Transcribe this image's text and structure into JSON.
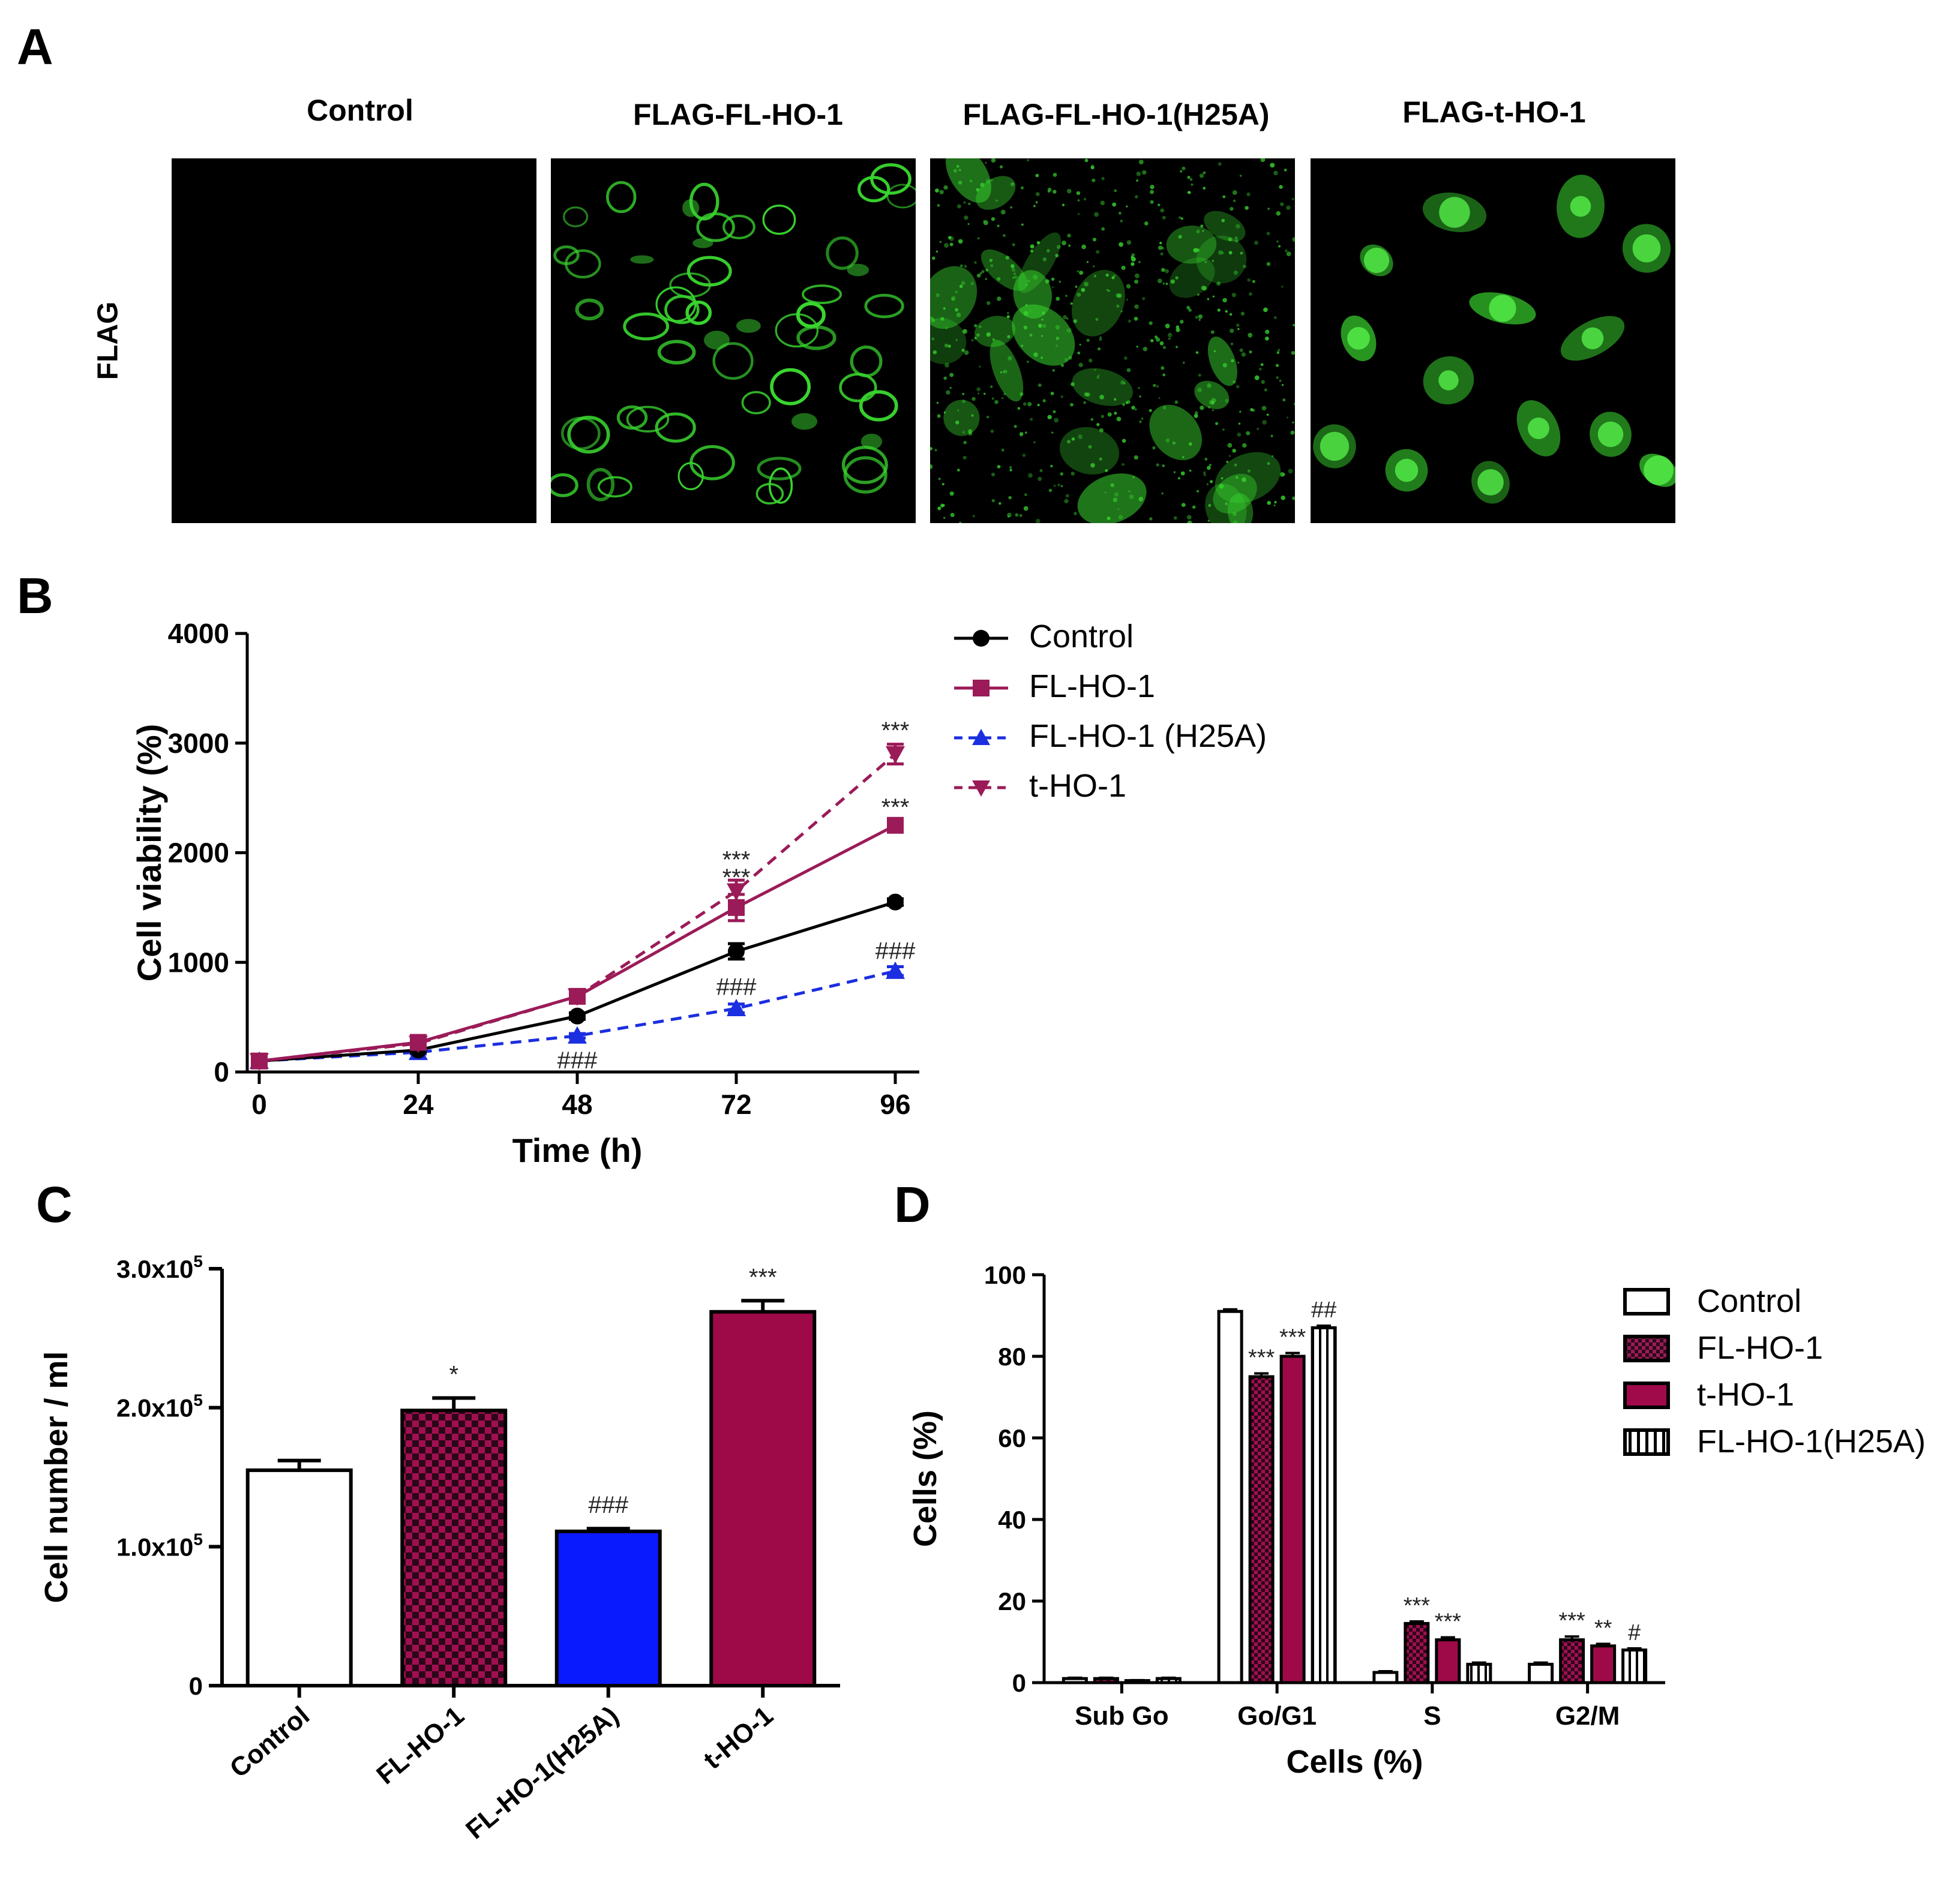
{
  "panels": {
    "a": "A",
    "b": "B",
    "c": "C",
    "d": "D"
  },
  "panel_a": {
    "row_label": "FLAG",
    "images": [
      {
        "title": "Control",
        "icon": "micrograph-blank"
      },
      {
        "title": "FLAG-FL-HO-1",
        "icon": "micrograph-membrane-green"
      },
      {
        "title": "FLAG-FL-HO-1(H25A)",
        "icon": "micrograph-reticular-green"
      },
      {
        "title": "FLAG-t-HO-1",
        "icon": "micrograph-diffuse-green"
      }
    ],
    "fluorescence_color": "#39d62f"
  },
  "chart_data": [
    {
      "panel": "B",
      "type": "line",
      "xlabel": "Time (h)",
      "ylabel": "Cell viability (%)",
      "x": [
        0,
        24,
        48,
        72,
        96
      ],
      "xticks": [
        "0",
        "24",
        "48",
        "72",
        "96"
      ],
      "ylim": [
        0,
        4000
      ],
      "yticks": [
        "0",
        "1000",
        "2000",
        "3000",
        "4000"
      ],
      "legend_position": "right",
      "series": [
        {
          "name": "Control",
          "values": [
            100,
            200,
            510,
            1100,
            1550
          ],
          "errors": [
            15,
            20,
            30,
            70,
            30
          ],
          "color": "#000000",
          "marker": "circle",
          "dashed": false
        },
        {
          "name": "FL-HO-1",
          "values": [
            100,
            270,
            690,
            1500,
            2250
          ],
          "errors": [
            15,
            20,
            30,
            120,
            40
          ],
          "color": "#9b1b58",
          "marker": "square",
          "dashed": false
        },
        {
          "name": "FL-HO-1 (H25A)",
          "values": [
            100,
            180,
            330,
            580,
            920
          ],
          "errors": [
            10,
            15,
            20,
            40,
            40
          ],
          "color": "#1b2ee0",
          "marker": "triangle-up",
          "dashed": true
        },
        {
          "name": "t-HO-1",
          "values": [
            100,
            260,
            690,
            1650,
            2900
          ],
          "errors": [
            15,
            20,
            30,
            100,
            90
          ],
          "color": "#9b1b58",
          "marker": "triangle-down",
          "dashed": true
        }
      ],
      "annotations": [
        {
          "x": 48,
          "y": 120,
          "text": "###"
        },
        {
          "x": 72,
          "y": 790,
          "text": "###"
        },
        {
          "x": 72,
          "y": 1790,
          "text": "***"
        },
        {
          "x": 72,
          "y": 1950,
          "text": "***"
        },
        {
          "x": 96,
          "y": 1120,
          "text": "###"
        },
        {
          "x": 96,
          "y": 2430,
          "text": "***"
        },
        {
          "x": 96,
          "y": 3130,
          "text": "***"
        }
      ]
    },
    {
      "panel": "C",
      "type": "bar",
      "ylabel": "Cell number / ml",
      "categories": [
        "Control",
        "FL-HO-1",
        "FL-HO-1(H25A)",
        "t-HO-1"
      ],
      "values": [
        155000,
        198000,
        111000,
        269000
      ],
      "errors": [
        7000,
        9000,
        2000,
        8000
      ],
      "fills": [
        "white",
        "checker",
        "blue",
        "crimson"
      ],
      "ylim": [
        0,
        300000
      ],
      "yticks": [
        {
          "value": 0,
          "label": "0"
        },
        {
          "value": 100000,
          "label": "1.0x10",
          "exp": "5"
        },
        {
          "value": 200000,
          "label": "2.0x10",
          "exp": "5"
        },
        {
          "value": 300000,
          "label": "3.0x10",
          "exp": "5"
        }
      ],
      "annotations": [
        "",
        "*",
        "###",
        "***"
      ]
    },
    {
      "panel": "D",
      "type": "bar",
      "xlabel": "Cells (%)",
      "ylabel": "Cells (%)",
      "categories": [
        "Sub Go",
        "Go/G1",
        "S",
        "G2/M"
      ],
      "ylim": [
        0,
        100
      ],
      "yticks": [
        "0",
        "20",
        "40",
        "60",
        "80",
        "100"
      ],
      "legend_position": "right",
      "series": [
        {
          "name": "Control",
          "fill": "white",
          "values": [
            1.0,
            91.0,
            2.5,
            4.5
          ],
          "errors": [
            0.2,
            0.5,
            0.3,
            0.4
          ],
          "annotations": [
            "",
            "",
            "",
            ""
          ]
        },
        {
          "name": "FL-HO-1",
          "fill": "checker",
          "values": [
            1.0,
            75.0,
            14.5,
            10.5
          ],
          "errors": [
            0.2,
            0.8,
            0.5,
            0.8
          ],
          "annotations": [
            "",
            "***",
            "***",
            "***"
          ]
        },
        {
          "name": "t-HO-1",
          "fill": "crimson",
          "values": [
            0.5,
            80.0,
            10.5,
            9.0
          ],
          "errors": [
            0.1,
            0.8,
            0.6,
            0.5
          ],
          "annotations": [
            "",
            "***",
            "***",
            "**"
          ]
        },
        {
          "name": "FL-HO-1(H25A)",
          "fill": "stripes",
          "values": [
            1.0,
            87.0,
            4.5,
            8.0
          ],
          "errors": [
            0.2,
            0.5,
            0.4,
            0.4
          ],
          "annotations": [
            "",
            "##",
            "",
            "#"
          ]
        }
      ]
    }
  ]
}
